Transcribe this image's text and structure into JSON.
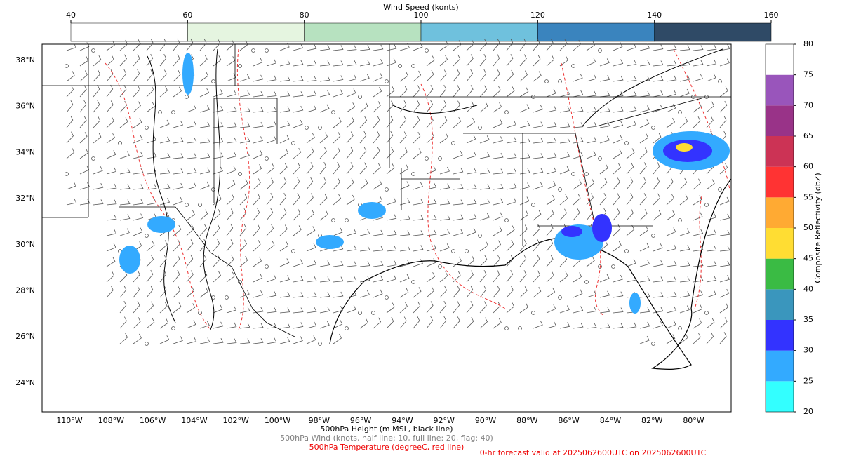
{
  "wind_colorbar": {
    "title": "Wind Speed (konts)",
    "ticks": [
      40,
      60,
      80,
      100,
      120,
      140,
      160
    ],
    "colors": [
      "#ffffff",
      "#e5f5e0",
      "#b7e2c0",
      "#6fc1dd",
      "#3a84be",
      "#2f4a66"
    ]
  },
  "reflectivity_colorbar": {
    "label": "Composite Reflectivity (dbZ)",
    "ticks": [
      20,
      25,
      30,
      35,
      40,
      45,
      50,
      55,
      60,
      65,
      70,
      75,
      80
    ],
    "colors": [
      "#33ffff",
      "#33aaff",
      "#3333ff",
      "#3a96bd",
      "#3abb44",
      "#ffdd33",
      "#ffaa33",
      "#ff3333",
      "#cc3355",
      "#993388",
      "#9955bb",
      "#ffffff"
    ]
  },
  "map": {
    "lat_labels": [
      "38°N",
      "36°N",
      "34°N",
      "32°N",
      "30°N",
      "28°N",
      "26°N",
      "24°N"
    ],
    "lon_labels": [
      "110°W",
      "108°W",
      "106°W",
      "104°W",
      "102°W",
      "100°W",
      "98°W",
      "96°W",
      "94°W",
      "92°W",
      "90°W",
      "88°W",
      "86°W",
      "84°W",
      "82°W",
      "80°W"
    ]
  },
  "captions": {
    "height": "500hPa Height (m MSL, black line)",
    "wind": "500hPa Wind (knots, half line: 10, full line: 20, flag: 40)",
    "temperature": "500hPa Temperature (degreeC, red line)",
    "forecast": "0-hr forecast valid at 2025062600UTC on 2025062600UTC"
  }
}
